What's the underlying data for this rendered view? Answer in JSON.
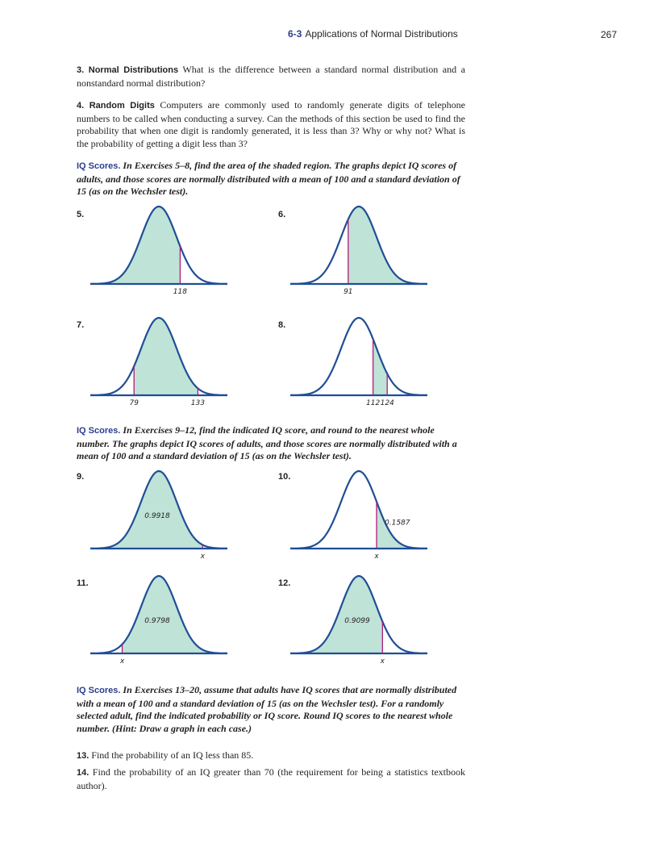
{
  "header": {
    "section": "6-3",
    "title": "Applications of Normal Distributions",
    "page": "267"
  },
  "q3": {
    "num": "3.",
    "lead": "Normal Distributions",
    "text": " What is the difference between a standard normal distribution and a nonstandard normal distribution?"
  },
  "q4": {
    "num": "4.",
    "lead": "Random Digits",
    "text": " Computers are commonly used to randomly generate digits of telephone numbers to be called when conducting a survey. Can the methods of this section be used to find the probability that when one digit is randomly generated, it is less than 3? Why or why not? What is the probability of getting a digit less than 3?"
  },
  "iq1": {
    "head": "IQ Scores.",
    "text": " In Exercises 5–8, find the area of the shaded region. The graphs depict IQ scores of adults, and those scores are normally distributed with a mean of 100 and a standard deviation of 15 (as on the Wechsler test)."
  },
  "iq2": {
    "head": "IQ Scores.",
    "text": " In Exercises 9–12, find the indicated IQ score, and round to the nearest whole number. The graphs depict IQ scores of adults, and those scores are normally distributed with a mean of 100 and a standard deviation of 15 (as on the Wechsler test)."
  },
  "iq3": {
    "head": "IQ Scores.",
    "text": " In Exercises 13–20, assume that adults have IQ scores that are normally distributed with a mean of 100 and a standard deviation of 15 (as on the Wechsler test). For a randomly selected adult, find the indicated probability or IQ score. Round IQ scores to the nearest whole number. (Hint: Draw a graph in each case.)"
  },
  "q13": {
    "num": "13.",
    "text": " Find the probability of an IQ less than 85."
  },
  "q14": {
    "num": "14.",
    "text": " Find the probability of an IQ greater than 70 (the requirement for being a statistics textbook author)."
  },
  "colors": {
    "curve": "#1f4e96",
    "fill": "#bfe3d6",
    "marker": "#b0197a",
    "heading": "#2b3d8f"
  },
  "graphs": [
    {
      "label": "5.",
      "shade": "left",
      "markers": [
        118
      ],
      "ticks": [
        "118"
      ],
      "area_label": ""
    },
    {
      "label": "6.",
      "shade": "right",
      "markers": [
        91
      ],
      "ticks": [
        "91"
      ],
      "area_label": ""
    },
    {
      "label": "7.",
      "shade": "between",
      "markers": [
        79,
        133
      ],
      "ticks": [
        "79",
        "133"
      ],
      "area_label": ""
    },
    {
      "label": "8.",
      "shade": "between",
      "markers": [
        112,
        124
      ],
      "ticks": [
        "112",
        "124"
      ],
      "area_label": ""
    },
    {
      "label": "9.",
      "shade": "left",
      "markers": [
        137
      ],
      "ticks": [
        "x"
      ],
      "area_label": "0.9918"
    },
    {
      "label": "10.",
      "shade": "right",
      "markers": [
        115
      ],
      "ticks": [
        "x"
      ],
      "area_label": "0.1587"
    },
    {
      "label": "11.",
      "shade": "right",
      "markers": [
        69
      ],
      "ticks": [
        "x"
      ],
      "area_label": "0.9798"
    },
    {
      "label": "12.",
      "shade": "left",
      "markers": [
        120
      ],
      "ticks": [
        "x"
      ],
      "area_label": "0.9099"
    }
  ]
}
